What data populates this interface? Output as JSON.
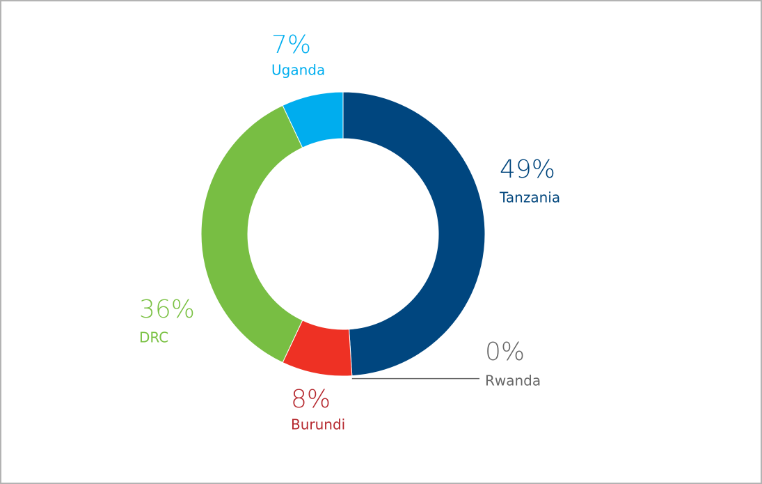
{
  "chart_data": {
    "type": "donut",
    "categories": [
      "Tanzania",
      "Rwanda",
      "Burundi",
      "DRC",
      "Uganda"
    ],
    "values": [
      49,
      0,
      8,
      36,
      7
    ],
    "value_labels": [
      "49%",
      "0%",
      "8%",
      "36%",
      "7%"
    ],
    "colors": [
      "#00467f",
      "#666666",
      "#ee3124",
      "#78be43",
      "#00adee"
    ],
    "label_colors": [
      "#00457c",
      "#666666",
      "#b5272d",
      "#7ac143",
      "#00aeef"
    ]
  }
}
